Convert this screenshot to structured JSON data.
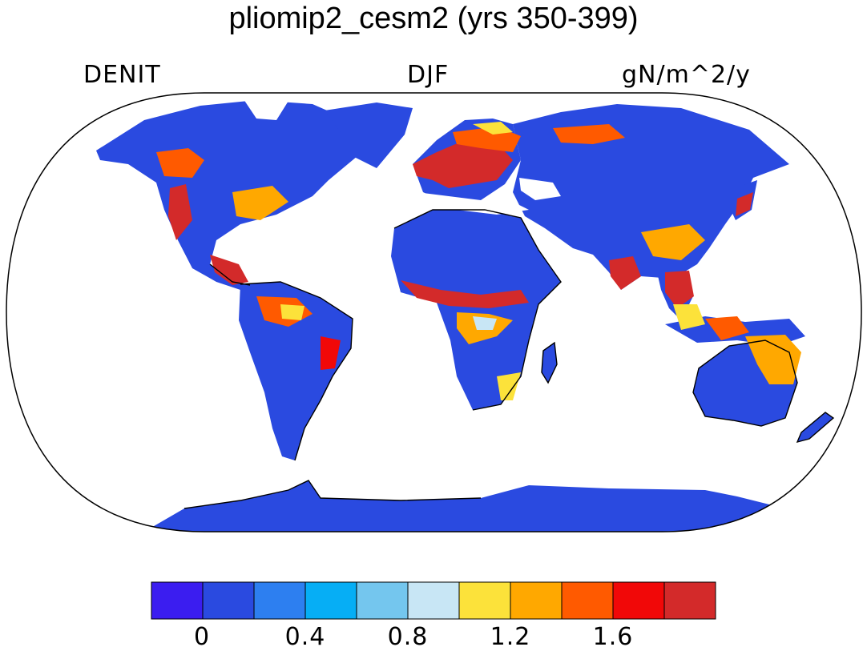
{
  "title": "pliomip2_cesm2 (yrs 350-399)",
  "labels": {
    "left": "DENIT",
    "center": "DJF",
    "right": "gN/m^2/y"
  },
  "colorbar": {
    "colors": [
      "#3b1df0",
      "#2a4ae0",
      "#2d7ff0",
      "#06aef5",
      "#74c6ee",
      "#c8e6f5",
      "#fce23a",
      "#ffa800",
      "#ff5a00",
      "#f10808",
      "#d32a2a"
    ],
    "ticks": [
      "0",
      "0.4",
      "0.8",
      "1.2",
      "1.6"
    ]
  }
}
